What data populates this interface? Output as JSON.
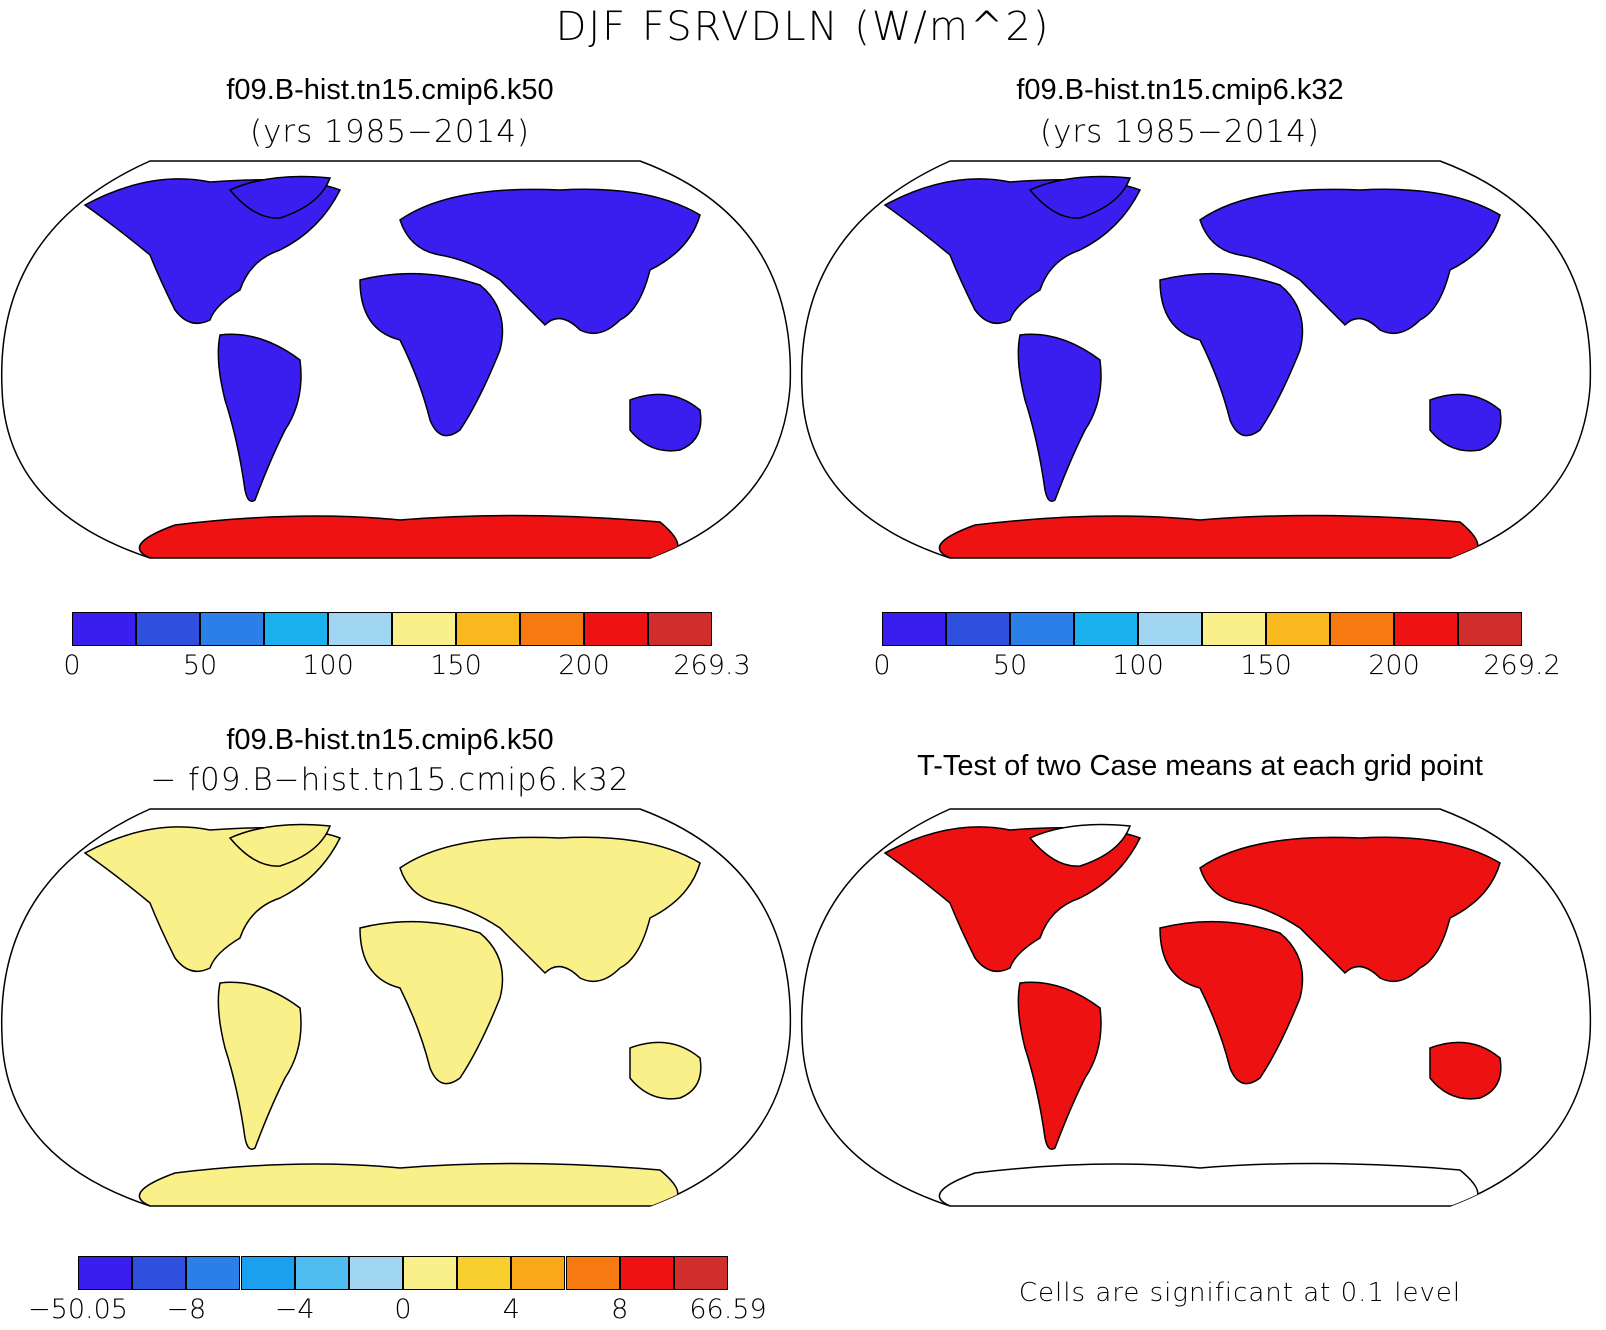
{
  "figure": {
    "title": "DJF FSRVDLN (W/m^2)"
  },
  "panels": {
    "top_left": {
      "title": "f09.B-hist.tn15.cmip6.k50",
      "subtitle": "(yrs 1985−2014)",
      "colorbar": {
        "colors": [
          "#3a1eef",
          "#2f4fde",
          "#2a80e8",
          "#1ab2ee",
          "#a0d6f2",
          "#faf08a",
          "#f8b81e",
          "#f77a10",
          "#ee1212",
          "#d22d2d"
        ],
        "labels": [
          "0",
          "50",
          "100",
          "150",
          "200",
          "269.3"
        ]
      }
    },
    "top_right": {
      "title": "f09.B-hist.tn15.cmip6.k32",
      "subtitle": "(yrs 1985−2014)",
      "colorbar": {
        "colors": [
          "#3a1eef",
          "#2f4fde",
          "#2a80e8",
          "#1ab2ee",
          "#a0d6f2",
          "#faf08a",
          "#f8b81e",
          "#f77a10",
          "#ee1212",
          "#d22d2d"
        ],
        "labels": [
          "0",
          "50",
          "100",
          "150",
          "200",
          "269.2"
        ]
      }
    },
    "bottom_left": {
      "title": "f09.B-hist.tn15.cmip6.k50",
      "subtitle": "− f09.B−hist.tn15.cmip6.k32",
      "colorbar": {
        "colors": [
          "#3a1eef",
          "#2f4fde",
          "#2a80e8",
          "#1aa0ef",
          "#4fbdf0",
          "#a0d6f2",
          "#faf08a",
          "#f9cf30",
          "#f8a818",
          "#f77a10",
          "#ee1212",
          "#d22d2d"
        ],
        "labels": [
          "−50.05",
          "−8",
          "−4",
          "0",
          "4",
          "8",
          "66.59"
        ]
      }
    },
    "bottom_right": {
      "title": "T-Test of two Case means at each grid point",
      "note": "Cells are significant at 0.1 level",
      "significant_color": "#ee1111"
    }
  }
}
